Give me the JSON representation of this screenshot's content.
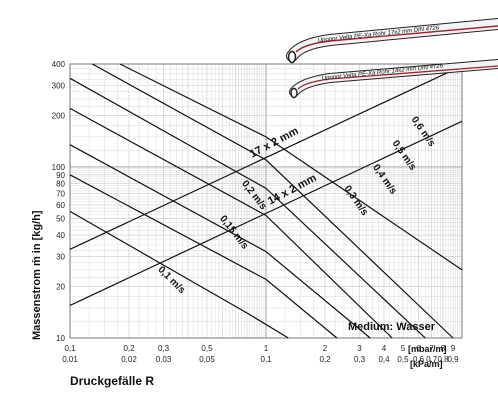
{
  "chart_data": {
    "type": "line",
    "title": "",
    "xlabel": "Druckgefälle R",
    "ylabel": "Massenstrom ṁ in [kg/h]",
    "x_scale": "log",
    "y_scale": "log",
    "xlim": [
      0.1,
      10
    ],
    "ylim": [
      10,
      400
    ],
    "grid": true,
    "x_ticks_mbar": [
      "0,1",
      "0,2",
      "0,3",
      "0,5",
      "1",
      "2",
      "3",
      "4",
      "5",
      "6",
      "7",
      "8",
      "9"
    ],
    "x_ticks_kpa": [
      "0,01",
      "0,02",
      "0,03",
      "0,05",
      "0,1",
      "0,2",
      "0,3",
      "0,4",
      "0,5",
      "0,6",
      "0,7",
      "0,8",
      "0,9"
    ],
    "x_unit_mbar": "[mbar/m]",
    "x_unit_kpa": "[kPa/m]",
    "y_ticks": [
      "10",
      "20",
      "30",
      "40",
      "50",
      "60",
      "70",
      "80",
      "90",
      "100",
      "200",
      "300",
      "400"
    ],
    "annotation": "Medium: Wasser",
    "pipe_series": [
      {
        "name": "17 x 2 mm",
        "points": [
          [
            0.1,
            33
          ],
          [
            10,
            390
          ]
        ]
      },
      {
        "name": "14 x 2 mm",
        "points": [
          [
            0.1,
            15.5
          ],
          [
            10,
            185
          ]
        ]
      }
    ],
    "velocity_series": [
      {
        "name": "0,1 m/s",
        "points": [
          [
            0.1,
            55
          ],
          [
            0.8,
            14
          ],
          [
            1.3,
            10
          ]
        ]
      },
      {
        "name": "0,15 m/s",
        "points": [
          [
            0.1,
            90
          ],
          [
            1.0,
            22
          ],
          [
            2.3,
            10
          ]
        ]
      },
      {
        "name": "0,2 m/s",
        "points": [
          [
            0.1,
            135
          ],
          [
            1.0,
            32
          ],
          [
            3.4,
            10
          ]
        ]
      },
      {
        "name": "0,3 m/s",
        "points": [
          [
            0.1,
            220
          ],
          [
            1.0,
            52
          ],
          [
            4.4,
            10
          ]
        ]
      },
      {
        "name": "0,4 m/s",
        "points": [
          [
            0.1,
            330
          ],
          [
            1.0,
            75
          ],
          [
            6.5,
            10
          ]
        ]
      },
      {
        "name": "0,5 m/s",
        "points": [
          [
            0.13,
            400
          ],
          [
            1.0,
            110
          ],
          [
            9.0,
            10
          ]
        ]
      },
      {
        "name": "0,6 m/s",
        "points": [
          [
            0.18,
            400
          ],
          [
            1.0,
            150
          ],
          [
            10,
            25
          ]
        ]
      }
    ],
    "pipe_product_labels": [
      "Uponor Velta PE-Xa Rohr 17x2 mm DIN 4726",
      "Uponor Velta PE-Xa Rohr 14x2 mm DIN 4726"
    ]
  },
  "colors": {
    "grid_minor": "#c8c8c8",
    "grid_major": "#9a9a9a",
    "line": "#111111",
    "pipe_stripe": "#a0252a"
  }
}
